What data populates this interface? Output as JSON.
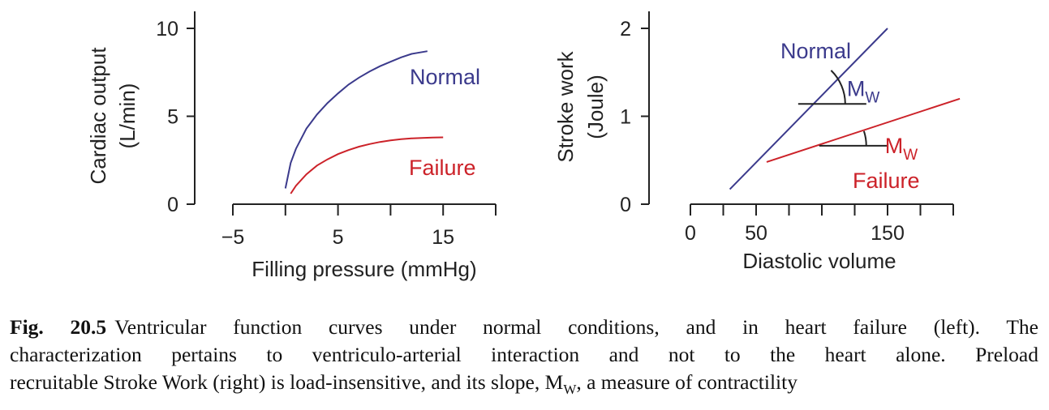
{
  "colors": {
    "normal": "#3b3a8c",
    "failure": "#cc2229",
    "axis": "#222222"
  },
  "chart_data": [
    {
      "type": "line",
      "xlabel": "Filling pressure (mmHg)",
      "ylabel_line1": "Cardiac output",
      "ylabel_line2": "(L/min)",
      "x_ticks": [
        -5,
        0,
        5,
        10,
        15,
        20
      ],
      "x_tick_labels": [
        "−5",
        "5",
        "15"
      ],
      "x_tick_label_values": [
        -5,
        5,
        15
      ],
      "y_ticks": [
        0,
        5,
        10
      ],
      "y_tick_labels": [
        "0",
        "5",
        "10"
      ],
      "xlim": [
        -5,
        20
      ],
      "ylim": [
        0,
        10
      ],
      "series": [
        {
          "name": "Normal",
          "color": "#3b3a8c",
          "x": [
            0,
            0.5,
            1,
            2,
            3,
            4,
            5,
            6,
            7,
            8,
            9,
            10,
            11,
            12,
            13.5
          ],
          "y": [
            0.9,
            2.35,
            3.15,
            4.3,
            5.1,
            5.75,
            6.3,
            6.8,
            7.2,
            7.55,
            7.85,
            8.1,
            8.35,
            8.55,
            8.7
          ]
        },
        {
          "name": "Failure",
          "color": "#cc2229",
          "x": [
            0.5,
            1,
            2,
            3,
            4,
            5,
            6,
            7,
            8,
            9,
            10,
            11,
            12,
            13,
            14,
            15
          ],
          "y": [
            0.6,
            1.05,
            1.7,
            2.2,
            2.55,
            2.85,
            3.08,
            3.27,
            3.42,
            3.54,
            3.63,
            3.7,
            3.74,
            3.77,
            3.79,
            3.8
          ]
        }
      ]
    },
    {
      "type": "line",
      "xlabel": "Diastolic volume",
      "ylabel_line1": "Stroke work",
      "ylabel_line2": "(Joule)",
      "x_ticks": [
        0,
        25,
        50,
        75,
        100,
        125,
        150,
        175,
        200
      ],
      "x_tick_labels": [
        "0",
        "50",
        "150"
      ],
      "x_tick_label_values": [
        0,
        50,
        150
      ],
      "y_ticks": [
        0,
        1,
        2
      ],
      "y_tick_labels": [
        "0",
        "1",
        "2"
      ],
      "xlim": [
        0,
        200
      ],
      "ylim": [
        0,
        2
      ],
      "series": [
        {
          "name": "Normal",
          "color": "#3b3a8c",
          "x": [
            30,
            150
          ],
          "y": [
            0.17,
            2.0
          ]
        },
        {
          "name": "Failure",
          "color": "#cc2229",
          "x": [
            58,
            205
          ],
          "y": [
            0.48,
            1.2
          ]
        }
      ],
      "annotations": [
        {
          "label": "M",
          "sub": "W",
          "color": "#3b3a8c",
          "vertex": [
            82,
            1.14
          ],
          "slope_series": 0
        },
        {
          "label": "M",
          "sub": "W",
          "color": "#cc2229",
          "vertex": [
            98,
            0.665
          ],
          "slope_series": 1
        }
      ]
    }
  ],
  "caption": {
    "label": "Fig. 20.5",
    "line1": "Ventricular function curves under normal conditions, and in heart failure (left). The",
    "line2": "characterization pertains to ventriculo-arterial interaction and not to the heart alone. Preload",
    "line3_pre": "recruitable Stroke Work (right) is load-insensitive, and its slope, M",
    "line3_sub": "W",
    "line3_post": ", a measure of contractility"
  }
}
